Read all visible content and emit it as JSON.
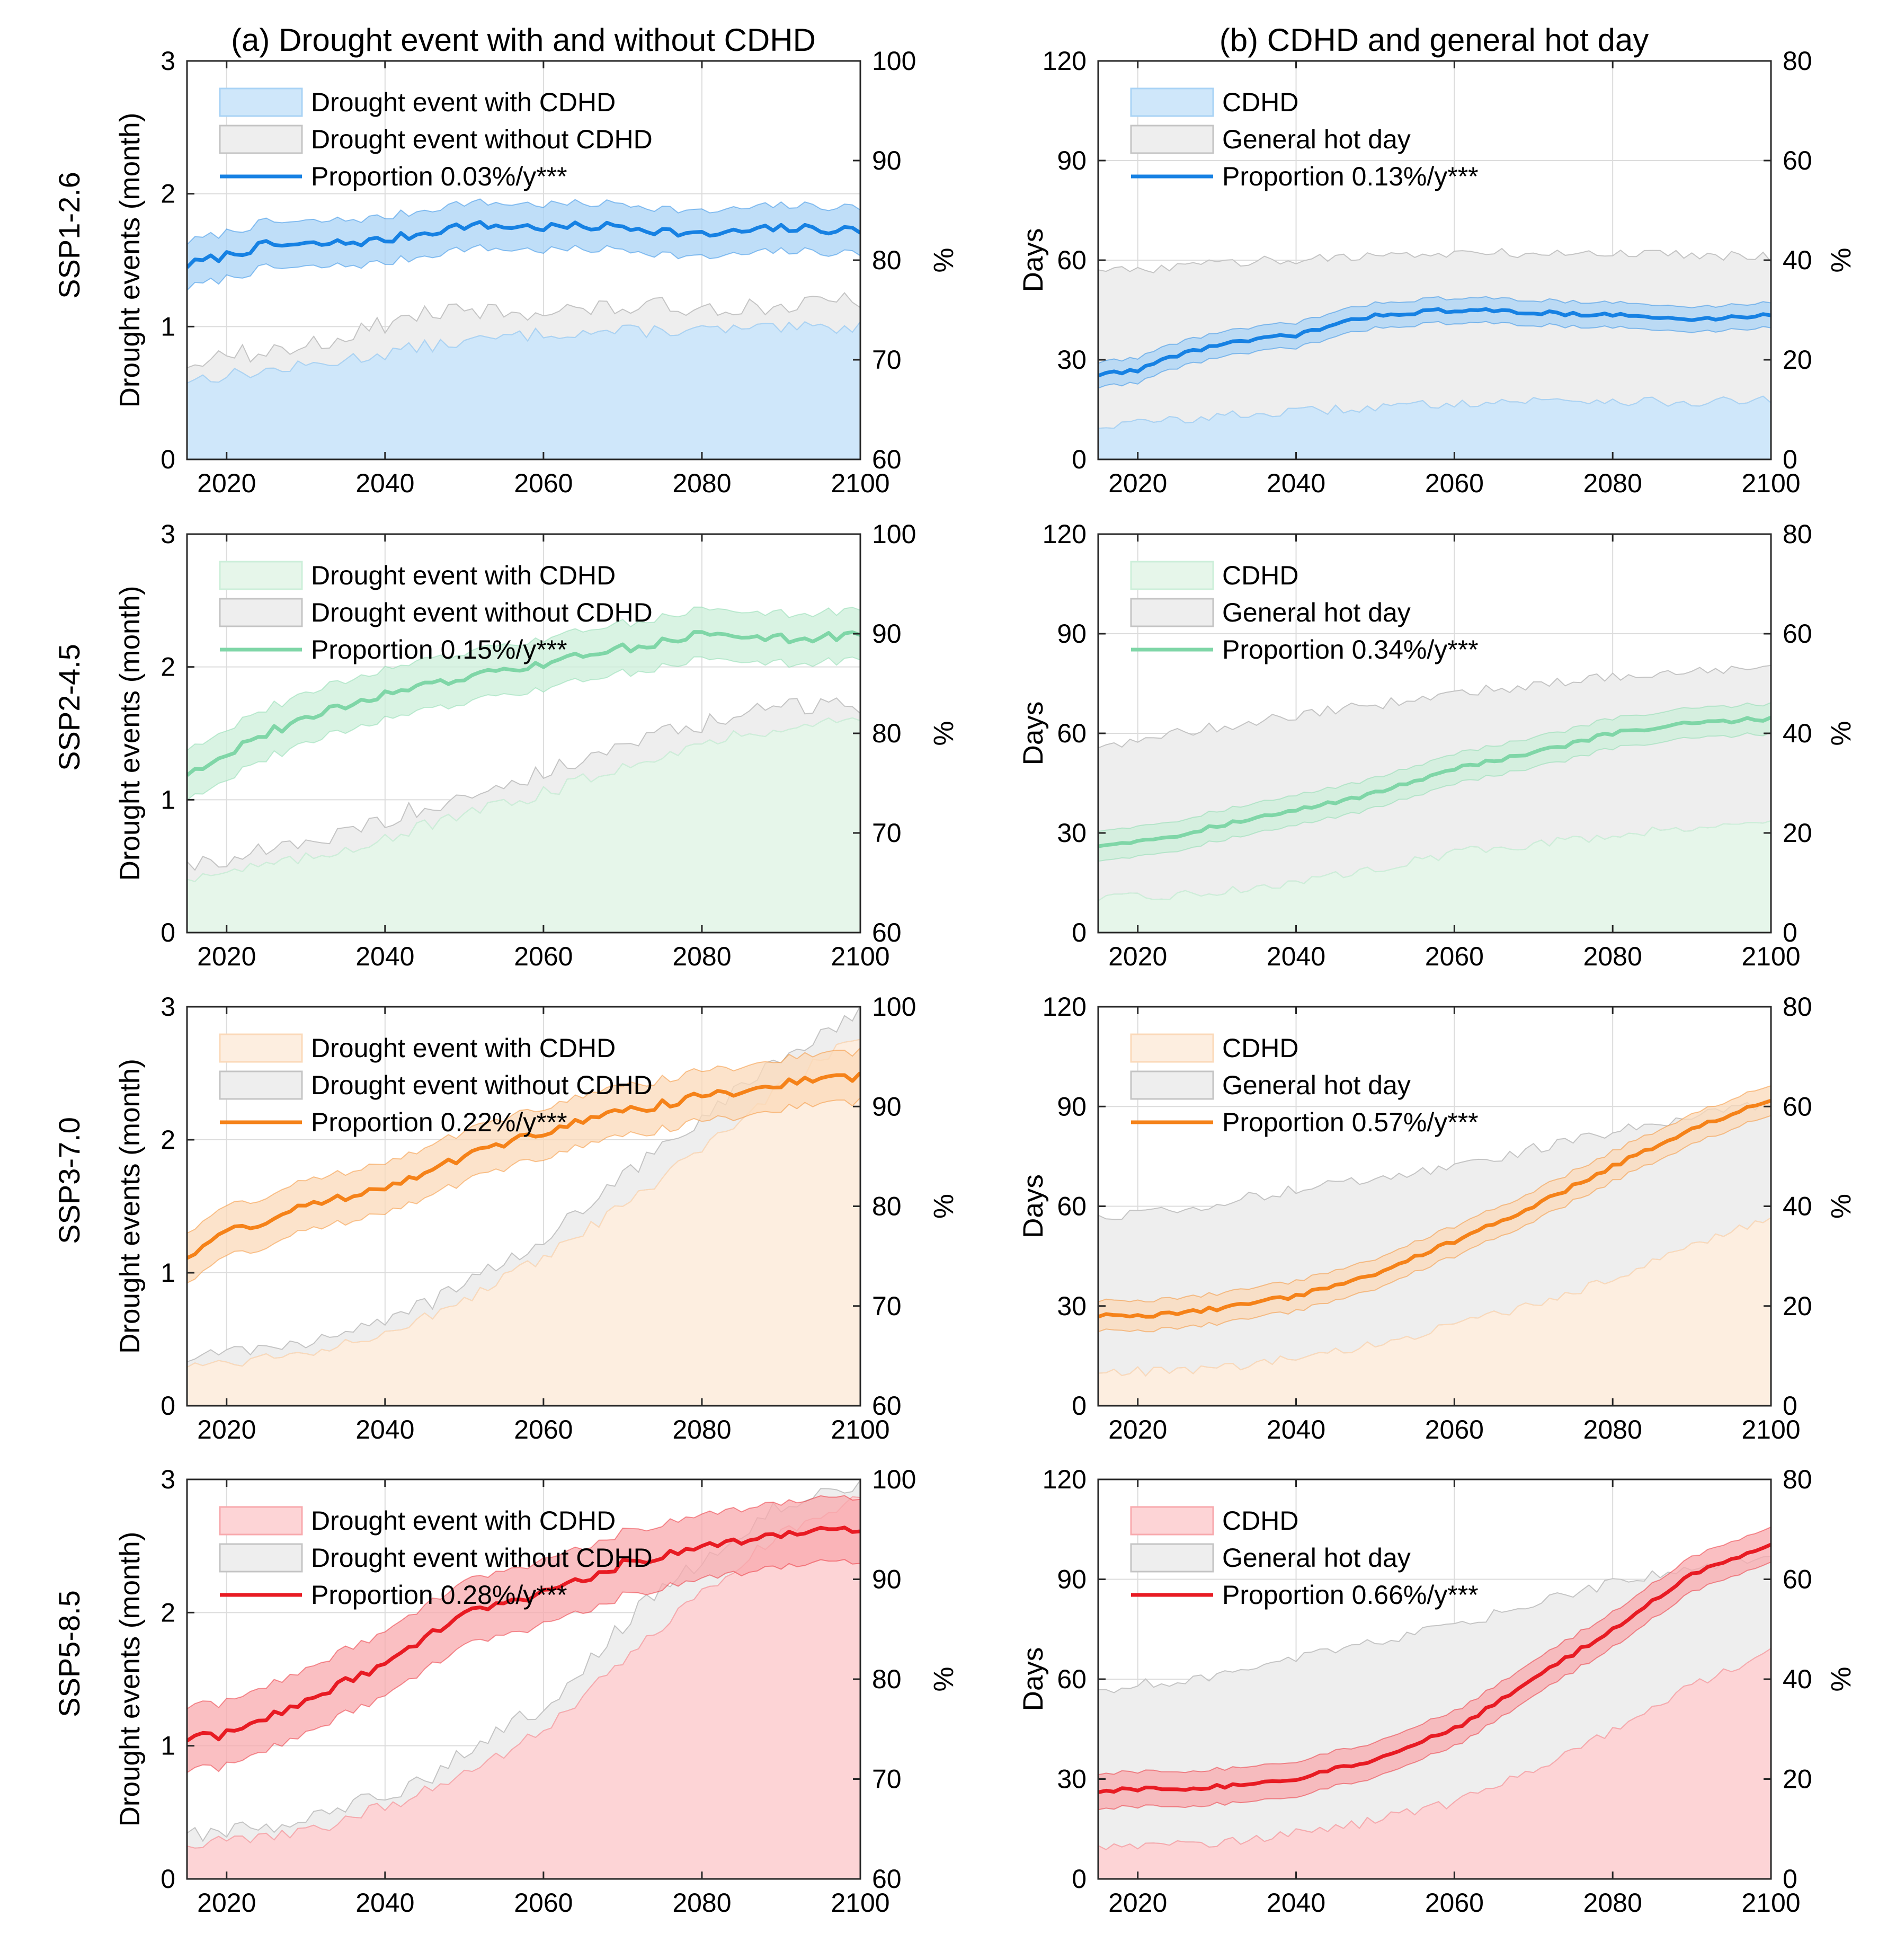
{
  "figure": {
    "column_titles": [
      "(a) Drought event with and without CDHD",
      "(b) CDHD and general hot day"
    ],
    "row_labels": [
      "SSP1-2.6",
      "SSP2-4.5",
      "SSP3-7.0",
      "SSP5-8.5"
    ],
    "scenario_colors": {
      "SSP1-2.6": {
        "line": "#1681e3",
        "fill": "#cfe7fa",
        "band": "#a9d3f5"
      },
      "SSP2-4.5": {
        "line": "#7fd6a7",
        "fill": "#e6f6ea",
        "band": "#ccefd9"
      },
      "SSP3-7.0": {
        "line": "#f58219",
        "fill": "#fdeee0",
        "band": "#fbd9b9"
      },
      "SSP5-8.5": {
        "line": "#e81b23",
        "fill": "#fdd4d6",
        "band": "#f8a9ad"
      }
    },
    "gray_fill": "#eeeeee",
    "gray_edge": "#c4c4c4"
  },
  "chart_data": [
    {
      "type": "area",
      "panel": "a",
      "scenario": "SSP1-2.6",
      "xlabel": "",
      "ylabel": "Drought events (month)",
      "y2label": "%",
      "xlim": [
        2015,
        2100
      ],
      "ylim": [
        0,
        3
      ],
      "y2lim": [
        60,
        100
      ],
      "xticks": [
        2020,
        2040,
        2060,
        2080,
        2100
      ],
      "yticks": [
        0,
        1,
        2,
        3
      ],
      "y2ticks": [
        60,
        70,
        80,
        90,
        100
      ],
      "legend": [
        "Drought event with CDHD",
        "Drought event without CDHD",
        "Proportion 0.03%/y***"
      ],
      "series": [
        {
          "name": "Drought event with CDHD",
          "years": [
            2015,
            2030,
            2045,
            2060,
            2075,
            2090,
            2100
          ],
          "values": [
            0.6,
            0.7,
            0.85,
            0.95,
            0.97,
            0.98,
            1.0
          ]
        },
        {
          "name": "Drought event without CDHD",
          "years": [
            2015,
            2030,
            2045,
            2060,
            2075,
            2090,
            2100
          ],
          "values": [
            0.75,
            0.85,
            1.1,
            1.12,
            1.15,
            1.15,
            1.2
          ]
        },
        {
          "name": "Proportion",
          "axis": "right",
          "years": [
            2015,
            2020,
            2025,
            2030,
            2040,
            2050,
            2060,
            2070,
            2080,
            2090,
            2100
          ],
          "values": [
            79.5,
            80.5,
            81.5,
            81.5,
            82.0,
            83.5,
            83.3,
            83.4,
            82.5,
            83.2,
            83.0
          ],
          "band": 2.3
        }
      ]
    },
    {
      "type": "area",
      "panel": "b",
      "scenario": "SSP1-2.6",
      "xlabel": "",
      "ylabel": "Days",
      "y2label": "%",
      "xlim": [
        2015,
        2100
      ],
      "ylim": [
        0,
        120
      ],
      "y2lim": [
        0,
        80
      ],
      "xticks": [
        2020,
        2040,
        2060,
        2080,
        2100
      ],
      "yticks": [
        0,
        30,
        60,
        90,
        120
      ],
      "y2ticks": [
        0,
        20,
        40,
        60,
        80
      ],
      "legend": [
        "CDHD",
        "General hot day",
        "Proportion 0.13%/y***"
      ],
      "series": [
        {
          "name": "CDHD",
          "years": [
            2015,
            2030,
            2045,
            2060,
            2075,
            2090,
            2100
          ],
          "values": [
            10,
            13,
            15,
            17,
            18,
            17,
            18
          ]
        },
        {
          "name": "General hot day",
          "years": [
            2015,
            2030,
            2045,
            2060,
            2075,
            2090,
            2100
          ],
          "values": [
            56,
            59,
            61,
            62,
            62,
            62,
            61
          ]
        },
        {
          "name": "Proportion",
          "axis": "right",
          "years": [
            2015,
            2020,
            2025,
            2030,
            2040,
            2050,
            2060,
            2070,
            2080,
            2090,
            2100
          ],
          "values": [
            17,
            18,
            21,
            23,
            25,
            29,
            30,
            29.5,
            29,
            28,
            29
          ],
          "band": 2.5
        }
      ]
    },
    {
      "type": "area",
      "panel": "a",
      "scenario": "SSP2-4.5",
      "xlabel": "",
      "ylabel": "Drought events (month)",
      "y2label": "%",
      "xlim": [
        2015,
        2100
      ],
      "ylim": [
        0,
        3
      ],
      "y2lim": [
        60,
        100
      ],
      "xticks": [
        2020,
        2040,
        2060,
        2080,
        2100
      ],
      "yticks": [
        0,
        1,
        2,
        3
      ],
      "y2ticks": [
        60,
        70,
        80,
        90,
        100
      ],
      "legend": [
        "Drought event with CDHD",
        "Drought event without CDHD",
        "Proportion 0.15%/y***"
      ],
      "series": [
        {
          "name": "Drought event with CDHD",
          "years": [
            2015,
            2030,
            2045,
            2060,
            2075,
            2090,
            2100
          ],
          "values": [
            0.42,
            0.55,
            0.8,
            1.05,
            1.35,
            1.55,
            1.6
          ]
        },
        {
          "name": "Drought event without CDHD",
          "years": [
            2015,
            2030,
            2045,
            2060,
            2075,
            2090,
            2100
          ],
          "values": [
            0.52,
            0.65,
            0.95,
            1.2,
            1.5,
            1.7,
            1.72
          ]
        },
        {
          "name": "Proportion",
          "axis": "right",
          "years": [
            2015,
            2020,
            2025,
            2030,
            2040,
            2050,
            2060,
            2070,
            2080,
            2090,
            2100
          ],
          "values": [
            76,
            78,
            80,
            81.5,
            84,
            85.5,
            87,
            88.5,
            90,
            89.5,
            89.8
          ],
          "band": 2.5
        }
      ]
    },
    {
      "type": "area",
      "panel": "b",
      "scenario": "SSP2-4.5",
      "xlabel": "",
      "ylabel": "Days",
      "y2label": "%",
      "xlim": [
        2015,
        2100
      ],
      "ylim": [
        0,
        120
      ],
      "y2lim": [
        0,
        80
      ],
      "xticks": [
        2020,
        2040,
        2060,
        2080,
        2100
      ],
      "yticks": [
        0,
        30,
        60,
        90,
        120
      ],
      "y2ticks": [
        0,
        20,
        40,
        60,
        80
      ],
      "legend": [
        "CDHD",
        "General hot day",
        "Proportion 0.34%/y***"
      ],
      "series": [
        {
          "name": "CDHD",
          "years": [
            2015,
            2030,
            2045,
            2060,
            2075,
            2090,
            2100
          ],
          "values": [
            10,
            12,
            17,
            24,
            28,
            32,
            33
          ]
        },
        {
          "name": "General hot day",
          "years": [
            2015,
            2030,
            2045,
            2060,
            2075,
            2090,
            2100
          ],
          "values": [
            56,
            62,
            67,
            72,
            76,
            79,
            79
          ]
        },
        {
          "name": "Proportion",
          "axis": "right",
          "years": [
            2015,
            2020,
            2025,
            2030,
            2040,
            2050,
            2060,
            2070,
            2080,
            2090,
            2100
          ],
          "values": [
            17.5,
            18.5,
            19.5,
            21.5,
            24.5,
            28,
            33,
            36,
            40,
            42,
            43
          ],
          "band": 3
        }
      ]
    },
    {
      "type": "area",
      "panel": "a",
      "scenario": "SSP3-7.0",
      "xlabel": "",
      "ylabel": "Drought events (month)",
      "y2label": "%",
      "xlim": [
        2015,
        2100
      ],
      "ylim": [
        0,
        3
      ],
      "y2lim": [
        60,
        100
      ],
      "xticks": [
        2020,
        2040,
        2060,
        2080,
        2100
      ],
      "yticks": [
        0,
        1,
        2,
        3
      ],
      "y2ticks": [
        60,
        70,
        80,
        90,
        100
      ],
      "legend": [
        "Drought event with CDHD",
        "Drought event without CDHD",
        "Proportion 0.22%/y***"
      ],
      "series": [
        {
          "name": "Drought event with CDHD",
          "years": [
            2015,
            2030,
            2045,
            2060,
            2075,
            2090,
            2100
          ],
          "values": [
            0.3,
            0.4,
            0.65,
            1.1,
            1.7,
            2.4,
            2.8
          ]
        },
        {
          "name": "Drought event without CDHD",
          "years": [
            2015,
            2030,
            2045,
            2060,
            2075,
            2090,
            2100
          ],
          "values": [
            0.38,
            0.48,
            0.75,
            1.25,
            1.95,
            2.6,
            2.95
          ]
        },
        {
          "name": "Proportion",
          "axis": "right",
          "years": [
            2015,
            2020,
            2025,
            2030,
            2040,
            2050,
            2060,
            2070,
            2080,
            2090,
            2100
          ],
          "values": [
            75,
            77.5,
            78.5,
            80,
            82,
            85,
            87.5,
            89.5,
            91,
            92.3,
            93
          ],
          "band": 2.5
        }
      ]
    },
    {
      "type": "area",
      "panel": "b",
      "scenario": "SSP3-7.0",
      "xlabel": "",
      "ylabel": "Days",
      "y2label": "%",
      "xlim": [
        2015,
        2100
      ],
      "ylim": [
        0,
        120
      ],
      "y2lim": [
        0,
        80
      ],
      "xticks": [
        2020,
        2040,
        2060,
        2080,
        2100
      ],
      "yticks": [
        0,
        30,
        60,
        90,
        120
      ],
      "y2ticks": [
        0,
        20,
        40,
        60,
        80
      ],
      "legend": [
        "CDHD",
        "General hot day",
        "Proportion 0.57%/y***"
      ],
      "series": [
        {
          "name": "CDHD",
          "years": [
            2015,
            2030,
            2045,
            2060,
            2075,
            2090,
            2100
          ],
          "values": [
            10,
            11,
            16,
            24,
            34,
            48,
            57
          ]
        },
        {
          "name": "General hot day",
          "years": [
            2015,
            2030,
            2045,
            2060,
            2075,
            2090,
            2100
          ],
          "values": [
            56,
            61,
            67,
            72,
            80,
            87,
            91
          ]
        },
        {
          "name": "Proportion",
          "axis": "right",
          "years": [
            2015,
            2020,
            2025,
            2030,
            2040,
            2050,
            2060,
            2070,
            2080,
            2090,
            2100
          ],
          "values": [
            18,
            18,
            18.5,
            19.5,
            22,
            26.5,
            33,
            40,
            48,
            55.5,
            61.5
          ],
          "band": 3
        }
      ]
    },
    {
      "type": "area",
      "panel": "a",
      "scenario": "SSP5-8.5",
      "xlabel": "",
      "ylabel": "Drought events (month)",
      "y2label": "%",
      "xlim": [
        2015,
        2100
      ],
      "ylim": [
        0,
        3
      ],
      "y2lim": [
        60,
        100
      ],
      "xticks": [
        2020,
        2040,
        2060,
        2080,
        2100
      ],
      "yticks": [
        0,
        1,
        2,
        3
      ],
      "y2ticks": [
        60,
        70,
        80,
        90,
        100
      ],
      "legend": [
        "Drought event with CDHD",
        "Drought event without CDHD",
        "Proportion 0.28%/y***"
      ],
      "series": [
        {
          "name": "Drought event with CDHD",
          "years": [
            2015,
            2030,
            2045,
            2060,
            2075,
            2090,
            2100
          ],
          "values": [
            0.25,
            0.35,
            0.65,
            1.1,
            1.9,
            2.6,
            2.85
          ]
        },
        {
          "name": "Drought event without CDHD",
          "years": [
            2015,
            2030,
            2045,
            2060,
            2075,
            2090,
            2100
          ],
          "values": [
            0.32,
            0.42,
            0.75,
            1.3,
            2.2,
            2.8,
            2.95
          ]
        },
        {
          "name": "Proportion",
          "axis": "right",
          "years": [
            2015,
            2020,
            2025,
            2030,
            2040,
            2050,
            2060,
            2070,
            2080,
            2090,
            2100
          ],
          "values": [
            74,
            74.5,
            76,
            78,
            81.5,
            86.5,
            88.5,
            91.5,
            93.5,
            94.5,
            95
          ],
          "band": 3.2
        }
      ]
    },
    {
      "type": "area",
      "panel": "b",
      "scenario": "SSP5-8.5",
      "xlabel": "",
      "ylabel": "Days",
      "y2label": "%",
      "xlim": [
        2015,
        2100
      ],
      "ylim": [
        0,
        120
      ],
      "y2lim": [
        0,
        80
      ],
      "xticks": [
        2020,
        2040,
        2060,
        2080,
        2100
      ],
      "yticks": [
        0,
        30,
        60,
        90,
        120
      ],
      "y2ticks": [
        0,
        20,
        40,
        60,
        80
      ],
      "legend": [
        "CDHD",
        "General hot day",
        "Proportion 0.66%/y***"
      ],
      "series": [
        {
          "name": "CDHD",
          "years": [
            2015,
            2030,
            2045,
            2060,
            2075,
            2090,
            2100
          ],
          "values": [
            10,
            11,
            15,
            23,
            38,
            58,
            68
          ]
        },
        {
          "name": "General hot day",
          "years": [
            2015,
            2030,
            2045,
            2060,
            2075,
            2090,
            2100
          ],
          "values": [
            57,
            61,
            69,
            76,
            86,
            94,
            96
          ]
        },
        {
          "name": "Proportion",
          "axis": "right",
          "years": [
            2015,
            2020,
            2025,
            2030,
            2040,
            2050,
            2060,
            2070,
            2080,
            2090,
            2100
          ],
          "values": [
            17.5,
            18,
            18,
            18.5,
            20,
            24,
            30,
            40,
            50,
            61,
            67
          ],
          "band": 3.5
        }
      ]
    }
  ]
}
